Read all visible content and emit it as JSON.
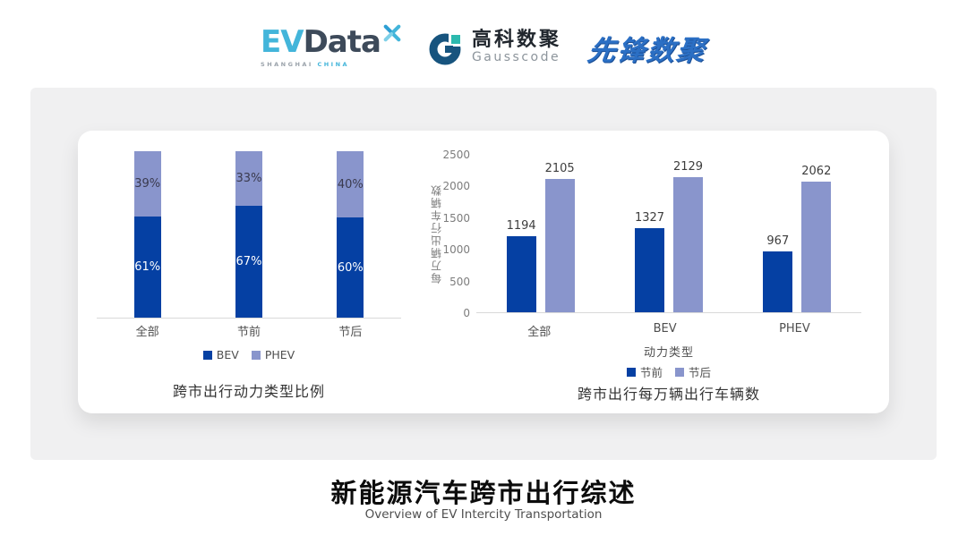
{
  "header": {
    "evdata": {
      "ev": "EV",
      "data": "Data",
      "sub1": "SHANGHAI",
      "sub2": "CHINA"
    },
    "gausscode": {
      "cn": "高科数聚",
      "en": "Gausscode"
    },
    "pioneer": {
      "text": "先锋数聚"
    }
  },
  "footer": {
    "title": "新能源汽车跨市出行综述",
    "subtitle": "Overview of EV Intercity Transportation"
  },
  "colors": {
    "dark_blue": "#0540a3",
    "light_blue": "#8995cc",
    "axis_line": "#d9d9d9",
    "tick_text": "#7d7d7d"
  },
  "chart_data": [
    {
      "type": "bar",
      "subtype": "stacked-percent",
      "title": "跨市出行动力类型比例",
      "categories": [
        "全部",
        "节前",
        "节后"
      ],
      "series": [
        {
          "name": "BEV",
          "color": "#0540a3",
          "values": [
            61,
            67,
            60
          ]
        },
        {
          "name": "PHEV",
          "color": "#8995cc",
          "values": [
            39,
            33,
            40
          ]
        }
      ],
      "label_format": "percent",
      "legend_position": "bottom",
      "grid": false
    },
    {
      "type": "bar",
      "subtype": "grouped",
      "title": "跨市出行每万辆出行车辆数",
      "categories": [
        "全部",
        "BEV",
        "PHEV"
      ],
      "xlabel": "动力类型",
      "ylabel": "每万辆出行车辆数",
      "ylim": [
        0,
        2500
      ],
      "yticks": [
        0,
        500,
        1000,
        1500,
        2000,
        2500
      ],
      "series": [
        {
          "name": "节前",
          "color": "#0540a3",
          "values": [
            1194,
            1327,
            967
          ]
        },
        {
          "name": "节后",
          "color": "#8995cc",
          "values": [
            2105,
            2129,
            2062
          ]
        }
      ],
      "legend_position": "bottom",
      "grid": false
    }
  ]
}
